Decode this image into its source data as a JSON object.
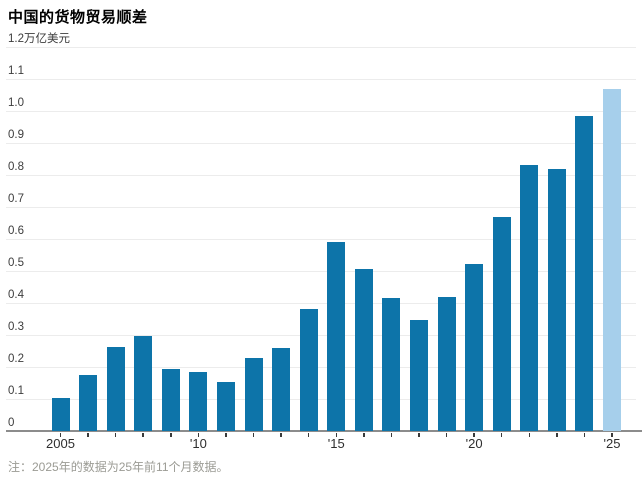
{
  "chart_data": {
    "type": "bar",
    "title": "中国的货物贸易顺差",
    "unit_label": "万亿美元",
    "footnote": "注：2025年的数据为25年前11个月数据。",
    "categories": [
      2005,
      2006,
      2007,
      2008,
      2009,
      2010,
      2011,
      2012,
      2013,
      2014,
      2015,
      2016,
      2017,
      2018,
      2019,
      2020,
      2021,
      2022,
      2023,
      2024,
      2025
    ],
    "values": [
      0.102,
      0.176,
      0.263,
      0.296,
      0.194,
      0.184,
      0.153,
      0.229,
      0.26,
      0.382,
      0.592,
      0.507,
      0.417,
      0.347,
      0.419,
      0.522,
      0.669,
      0.832,
      0.82,
      0.985,
      1.07
    ],
    "highlight_last": true,
    "ylim": [
      0,
      1.2
    ],
    "grid": "horizontal",
    "legend": "none",
    "ytick_values": [
      1.2,
      1.1,
      1.0,
      0.9,
      0.8,
      0.7,
      0.6,
      0.5,
      0.4,
      0.3,
      0.2,
      0.1,
      0
    ],
    "ytick_labels": [
      "1.2",
      "1.1",
      "1.0",
      "0.9",
      "0.8",
      "0.7",
      "0.6",
      "0.5",
      "0.4",
      "0.3",
      "0.2",
      "0.1",
      "0"
    ],
    "xticks": [
      {
        "index": 0,
        "label": "2005"
      },
      {
        "index": 5,
        "label": "'10"
      },
      {
        "index": 10,
        "label": "'15"
      },
      {
        "index": 15,
        "label": "'20"
      },
      {
        "index": 20,
        "label": "'25"
      }
    ],
    "colors": {
      "bar": "#0d74a9",
      "bar_highlight": "#a6cfeb",
      "gridline": "#ececec",
      "baseline": "#8c8c8c",
      "tick": "#3a3a3a",
      "axis_text": "#3c3c3c",
      "xaxis_text": "#2e2e2e",
      "title_text": "#000000",
      "footnote_text": "#9b9b94"
    }
  }
}
